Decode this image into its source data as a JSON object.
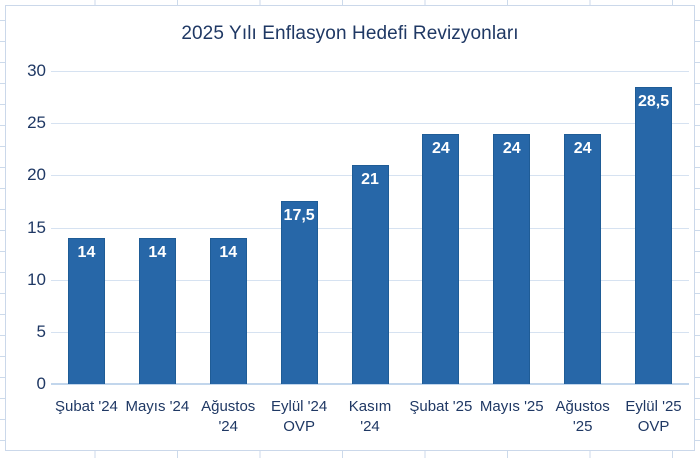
{
  "colors": {
    "bar_fill": "#2767a8",
    "bar_border": "#1f5c96",
    "title_text": "#1f3864",
    "axis_text": "#1f3864",
    "data_label_text": "#ffffff",
    "gridline": "#d6e2f1",
    "axis_line": "#c2d6ec",
    "chart_border": "#cbd8ea",
    "sheet_gridline": "#ccdaeb",
    "chart_background": "#ffffff"
  },
  "chart_data": {
    "type": "bar",
    "title": "2025 Yılı Enflasyon Hedefi Revizyonları",
    "categories": [
      "Şubat '24",
      "Mayıs '24",
      "Ağustos '24",
      "Eylül '24 OVP",
      "Kasım '24",
      "Şubat '25",
      "Mayıs '25",
      "Ağustos '25",
      "Eylül '25 OVP"
    ],
    "category_lines": [
      [
        "Şubat '24"
      ],
      [
        "Mayıs '24"
      ],
      [
        "Ağustos",
        "'24"
      ],
      [
        "Eylül '24",
        "OVP"
      ],
      [
        "Kasım",
        "'24"
      ],
      [
        "Şubat '25"
      ],
      [
        "Mayıs '25"
      ],
      [
        "Ağustos",
        "'25"
      ],
      [
        "Eylül '25",
        "OVP"
      ]
    ],
    "values": [
      14,
      14,
      14,
      17.5,
      21,
      24,
      24,
      24,
      28.5
    ],
    "value_labels": [
      "14",
      "14",
      "14",
      "17,5",
      "21",
      "24",
      "24",
      "24",
      "28,5"
    ],
    "xlabel": "",
    "ylabel": "",
    "ylim": [
      0,
      30
    ],
    "ytick_step": 5,
    "yticks": [
      "0",
      "5",
      "10",
      "15",
      "20",
      "25",
      "30"
    ],
    "grid": true,
    "legend": "none",
    "data_label_position": "inside-end"
  }
}
